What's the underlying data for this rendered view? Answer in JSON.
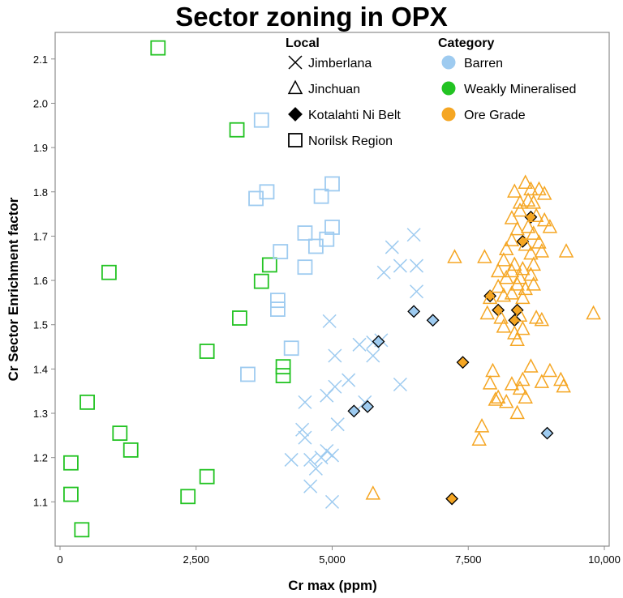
{
  "chart_data": {
    "type": "scatter",
    "title": "Sector zoning in OPX",
    "xlabel": "Cr max (ppm)",
    "ylabel": "Cr Sector Enrichment factor",
    "xlim": [
      0,
      10000
    ],
    "ylim": [
      1.0,
      2.16
    ],
    "xticks": [
      0,
      2500,
      5000,
      7500,
      10000
    ],
    "xtick_labels": [
      "0",
      "2,500",
      "5,000",
      "7,500",
      "10,000"
    ],
    "yticks": [
      1.1,
      1.2,
      1.3,
      1.4,
      1.5,
      1.6,
      1.7,
      1.8,
      1.9,
      2.0,
      2.1
    ],
    "ytick_labels": [
      "1.1",
      "1.2",
      "1.3",
      "1.4",
      "1.5",
      "1.6",
      "1.7",
      "1.8",
      "1.9",
      "2.0",
      "2.1"
    ],
    "legend_local_title": "Local",
    "legend_category_title": "Category",
    "legend_local": [
      {
        "name": "Jimberlana",
        "marker": "x"
      },
      {
        "name": "Jinchuan",
        "marker": "triangle"
      },
      {
        "name": "Kotalahti Ni Belt",
        "marker": "diamond"
      },
      {
        "name": "Norilsk Region",
        "marker": "square"
      }
    ],
    "legend_category": [
      {
        "name": "Barren",
        "color": "#9ecbf0"
      },
      {
        "name": "Weakly Mineralised",
        "color": "#22c322"
      },
      {
        "name": "Ore Grade",
        "color": "#f5a623"
      }
    ],
    "series": [
      {
        "local": "Norilsk Region",
        "category": "Weakly Mineralised",
        "points": [
          [
            1800,
            2.125
          ],
          [
            3250,
            1.94
          ],
          [
            900,
            1.618
          ],
          [
            3850,
            1.635
          ],
          [
            3700,
            1.598
          ],
          [
            3300,
            1.515
          ],
          [
            2700,
            1.44
          ],
          [
            4100,
            1.405
          ],
          [
            4100,
            1.385
          ],
          [
            500,
            1.325
          ],
          [
            1100,
            1.255
          ],
          [
            1300,
            1.217
          ],
          [
            200,
            1.188
          ],
          [
            2700,
            1.157
          ],
          [
            200,
            1.117
          ],
          [
            2350,
            1.112
          ],
          [
            400,
            1.037
          ]
        ]
      },
      {
        "local": "Norilsk Region",
        "category": "Barren",
        "points": [
          [
            3700,
            1.962
          ],
          [
            3600,
            1.785
          ],
          [
            3800,
            1.8
          ],
          [
            4800,
            1.79
          ],
          [
            5000,
            1.818
          ],
          [
            4500,
            1.707
          ],
          [
            4700,
            1.677
          ],
          [
            4900,
            1.693
          ],
          [
            5000,
            1.72
          ],
          [
            4050,
            1.665
          ],
          [
            4500,
            1.63
          ],
          [
            4000,
            1.555
          ],
          [
            4000,
            1.535
          ],
          [
            4250,
            1.447
          ],
          [
            3450,
            1.388
          ]
        ]
      },
      {
        "local": "Jimberlana",
        "category": "Barren",
        "points": [
          [
            6100,
            1.675
          ],
          [
            6500,
            1.703
          ],
          [
            6250,
            1.633
          ],
          [
            6550,
            1.633
          ],
          [
            5950,
            1.618
          ],
          [
            6550,
            1.575
          ],
          [
            4950,
            1.508
          ],
          [
            5750,
            1.46
          ],
          [
            5900,
            1.465
          ],
          [
            5500,
            1.455
          ],
          [
            5050,
            1.43
          ],
          [
            5750,
            1.43
          ],
          [
            5300,
            1.375
          ],
          [
            5050,
            1.36
          ],
          [
            6250,
            1.365
          ],
          [
            4900,
            1.34
          ],
          [
            4500,
            1.325
          ],
          [
            5600,
            1.325
          ],
          [
            5100,
            1.275
          ],
          [
            4450,
            1.263
          ],
          [
            4500,
            1.245
          ],
          [
            4900,
            1.215
          ],
          [
            4250,
            1.195
          ],
          [
            4600,
            1.195
          ],
          [
            4800,
            1.2
          ],
          [
            5000,
            1.205
          ],
          [
            4700,
            1.175
          ],
          [
            4600,
            1.135
          ],
          [
            5000,
            1.1
          ]
        ]
      },
      {
        "local": "Kotalahti Ni Belt",
        "category": "Barren",
        "points": [
          [
            6500,
            1.53
          ],
          [
            6850,
            1.51
          ],
          [
            5850,
            1.462
          ],
          [
            5650,
            1.315
          ],
          [
            5400,
            1.305
          ],
          [
            8950,
            1.255
          ]
        ]
      },
      {
        "local": "Kotalahti Ni Belt",
        "category": "Ore Grade",
        "points": [
          [
            8650,
            1.743
          ],
          [
            8500,
            1.688
          ],
          [
            7900,
            1.565
          ],
          [
            8050,
            1.533
          ],
          [
            8400,
            1.533
          ],
          [
            8350,
            1.51
          ],
          [
            7400,
            1.415
          ],
          [
            7200,
            1.107
          ]
        ]
      },
      {
        "local": "Jinchuan",
        "category": "Ore Grade",
        "points": [
          [
            8550,
            1.82
          ],
          [
            8350,
            1.8
          ],
          [
            8650,
            1.805
          ],
          [
            8800,
            1.805
          ],
          [
            8900,
            1.795
          ],
          [
            8450,
            1.775
          ],
          [
            8600,
            1.78
          ],
          [
            8700,
            1.775
          ],
          [
            8450,
            1.757
          ],
          [
            8300,
            1.74
          ],
          [
            8750,
            1.745
          ],
          [
            8900,
            1.735
          ],
          [
            8400,
            1.715
          ],
          [
            8600,
            1.72
          ],
          [
            8300,
            1.69
          ],
          [
            8700,
            1.705
          ],
          [
            9000,
            1.72
          ],
          [
            8200,
            1.67
          ],
          [
            8550,
            1.68
          ],
          [
            8800,
            1.685
          ],
          [
            7250,
            1.652
          ],
          [
            7800,
            1.652
          ],
          [
            8150,
            1.645
          ],
          [
            8350,
            1.635
          ],
          [
            8650,
            1.66
          ],
          [
            8850,
            1.665
          ],
          [
            9300,
            1.665
          ],
          [
            8050,
            1.62
          ],
          [
            8300,
            1.62
          ],
          [
            8500,
            1.625
          ],
          [
            8700,
            1.635
          ],
          [
            8200,
            1.605
          ],
          [
            8450,
            1.605
          ],
          [
            8650,
            1.612
          ],
          [
            8050,
            1.585
          ],
          [
            8400,
            1.59
          ],
          [
            8550,
            1.58
          ],
          [
            8700,
            1.59
          ],
          [
            7900,
            1.56
          ],
          [
            8150,
            1.565
          ],
          [
            8300,
            1.57
          ],
          [
            8500,
            1.56
          ],
          [
            7850,
            1.525
          ],
          [
            8100,
            1.515
          ],
          [
            8450,
            1.52
          ],
          [
            8750,
            1.515
          ],
          [
            8850,
            1.51
          ],
          [
            9800,
            1.525
          ],
          [
            8150,
            1.495
          ],
          [
            8500,
            1.49
          ],
          [
            8350,
            1.48
          ],
          [
            8400,
            1.465
          ],
          [
            7950,
            1.395
          ],
          [
            8650,
            1.405
          ],
          [
            9000,
            1.395
          ],
          [
            7900,
            1.367
          ],
          [
            8300,
            1.365
          ],
          [
            8500,
            1.375
          ],
          [
            8850,
            1.37
          ],
          [
            9200,
            1.375
          ],
          [
            8450,
            1.355
          ],
          [
            9250,
            1.36
          ],
          [
            8050,
            1.335
          ],
          [
            8200,
            1.325
          ],
          [
            8550,
            1.335
          ],
          [
            8000,
            1.33
          ],
          [
            8400,
            1.3
          ],
          [
            7750,
            1.27
          ],
          [
            7700,
            1.24
          ],
          [
            5750,
            1.118
          ]
        ]
      }
    ]
  }
}
